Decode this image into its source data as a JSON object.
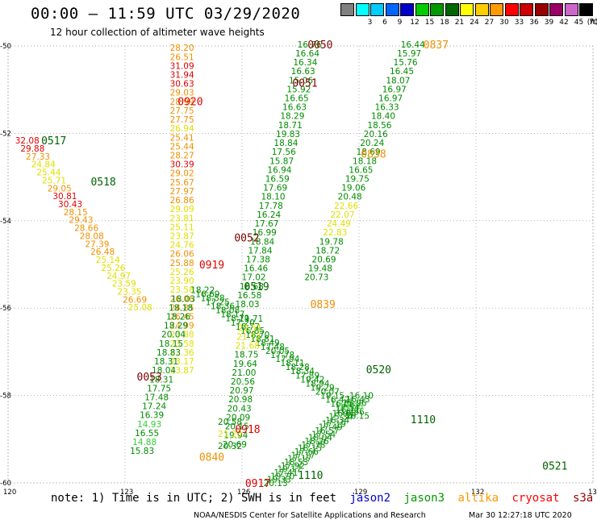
{
  "header": {
    "title": "00:00 – 11:59 UTC 03/29/2020",
    "subtitle": "12 hour collection of altimeter wave heights"
  },
  "scale": {
    "unit": "(ft)",
    "bins": [
      {
        "label": "",
        "color": "#808080"
      },
      {
        "label": "3",
        "color": "#00ffff"
      },
      {
        "label": "6",
        "color": "#00ccff"
      },
      {
        "label": "9",
        "color": "#0066ff"
      },
      {
        "label": "12",
        "color": "#0000cc"
      },
      {
        "label": "15",
        "color": "#00cc00"
      },
      {
        "label": "18",
        "color": "#009900"
      },
      {
        "label": "21",
        "color": "#006600"
      },
      {
        "label": "24",
        "color": "#ffff00"
      },
      {
        "label": "27",
        "color": "#ffcc00"
      },
      {
        "label": "30",
        "color": "#ff9900"
      },
      {
        "label": "33",
        "color": "#ff0000"
      },
      {
        "label": "36",
        "color": "#cc0000"
      },
      {
        "label": "39",
        "color": "#990000"
      },
      {
        "label": "42",
        "color": "#990066"
      },
      {
        "label": "45",
        "color": "#cc66cc"
      },
      {
        "label": "70",
        "color": "#000000"
      }
    ]
  },
  "map": {
    "lon_ticks": [
      "120",
      "123",
      "126",
      "129",
      "132",
      "135"
    ],
    "lat_ticks": [
      "-50",
      "-52",
      "-54",
      "-56",
      "-58",
      "-60"
    ],
    "lon_range": [
      120,
      135
    ],
    "lat_range": [
      -60,
      -50
    ]
  },
  "colors": {
    "green": "#008c00",
    "darkgreen": "#006400",
    "yellow": "#e0e000",
    "orange": "#f09000",
    "red": "#e00000",
    "darkred": "#800000",
    "lightgreen": "#33cc33"
  },
  "passes": [
    {
      "label": "0050",
      "lon": 127.68,
      "lat": -49.96,
      "color": "darkred"
    },
    {
      "label": "0837",
      "lon": 130.65,
      "lat": -49.96,
      "color": "orange"
    },
    {
      "label": "0051",
      "lon": 127.29,
      "lat": -50.84,
      "color": "darkred"
    },
    {
      "label": "0920",
      "lon": 124.35,
      "lat": -51.26,
      "color": "red"
    },
    {
      "label": "0517",
      "lon": 120.85,
      "lat": -52.16,
      "color": "darkgreen"
    },
    {
      "label": "0838",
      "lon": 129.05,
      "lat": -52.46,
      "color": "orange"
    },
    {
      "label": "0518",
      "lon": 122.12,
      "lat": -53.1,
      "color": "darkgreen"
    },
    {
      "label": "0052",
      "lon": 125.8,
      "lat": -54.38,
      "color": "darkred"
    },
    {
      "label": "0919",
      "lon": 124.9,
      "lat": -55.0,
      "color": "red"
    },
    {
      "label": "0519",
      "lon": 126.05,
      "lat": -55.5,
      "color": "darkgreen"
    },
    {
      "label": "0839",
      "lon": 127.75,
      "lat": -55.9,
      "color": "orange"
    },
    {
      "label": "0520",
      "lon": 129.18,
      "lat": -57.4,
      "color": "darkgreen"
    },
    {
      "label": "0053",
      "lon": 123.3,
      "lat": -57.56,
      "color": "darkred"
    },
    {
      "label": "0918",
      "lon": 125.82,
      "lat": -58.76,
      "color": "red"
    },
    {
      "label": "1110",
      "lon": 130.32,
      "lat": -58.54,
      "color": "darkgreen"
    },
    {
      "label": "0840",
      "lon": 124.9,
      "lat": -59.4,
      "color": "orange"
    },
    {
      "label": "0521",
      "lon": 133.7,
      "lat": -59.6,
      "color": "darkgreen"
    },
    {
      "label": "1110",
      "lon": 127.43,
      "lat": -59.82,
      "color": "darkgreen"
    },
    {
      "label": "0917",
      "lon": 126.08,
      "lat": -60.0,
      "color": "red"
    }
  ],
  "tracks": [
    {
      "name": "0920",
      "start": [
        124.15,
        -50.04
      ],
      "step": [
        0.0,
        -0.205
      ],
      "values": [
        "28.20",
        "26.51",
        "31.09",
        "31.94",
        "30.63",
        "29.03",
        "28.99",
        "27.75",
        "27.75",
        "26.94",
        "25.41",
        "25.44",
        "28.27",
        "30.39",
        "29.02",
        "25.67",
        "27.97",
        "26.86",
        "29.09",
        "23.81",
        "25.11",
        "23.87",
        "24.76",
        "26.06",
        "25.88",
        "25.26",
        "23.90",
        "23.58",
        "26.06",
        "24.85",
        "26.45",
        "24.99",
        "23.88",
        "23.58",
        "23.36",
        "23.17",
        "23.87"
      ],
      "colors": [
        "orange",
        "orange",
        "red",
        "red",
        "red",
        "orange",
        "orange",
        "orange",
        "orange",
        "yellow",
        "orange",
        "orange",
        "orange",
        "red",
        "orange",
        "orange",
        "orange",
        "orange",
        "yellow",
        "yellow",
        "yellow",
        "yellow",
        "yellow",
        "orange",
        "orange",
        "yellow",
        "yellow",
        "yellow",
        "orange",
        "orange",
        "orange",
        "orange",
        "yellow",
        "yellow",
        "yellow",
        "yellow",
        "yellow"
      ]
    },
    {
      "name": "0050",
      "start": [
        127.42,
        -49.96
      ],
      "step": [
        -0.055,
        -0.205
      ],
      "values": [
        "16.76",
        "16.64",
        "16.34",
        "16.63",
        "15.06",
        "15.92",
        "16.65",
        "16.63",
        "18.29",
        "18.71",
        "19.83",
        "18.84",
        "17.56",
        "15.87",
        "16.94",
        "16.59",
        "17.69",
        "18.10",
        "17.78",
        "16.24",
        "17.67",
        "16.99",
        "18.84",
        "17.84",
        "17.38",
        "16.46",
        "17.02",
        "16.68",
        "16.58",
        "18.03"
      ],
      "colors": [
        "green",
        "green",
        "green",
        "green",
        "green",
        "green",
        "green",
        "green",
        "green",
        "green",
        "green",
        "green",
        "green",
        "green",
        "green",
        "green",
        "green",
        "green",
        "green",
        "green",
        "green",
        "green",
        "green",
        "green",
        "green",
        "green",
        "green",
        "green",
        "green",
        "green"
      ]
    },
    {
      "name": "0837",
      "start": [
        130.07,
        -49.96
      ],
      "step": [
        -0.095,
        -0.205
      ],
      "values": [
        "16.44",
        "15.97",
        "15.76",
        "16.45",
        "18.07",
        "16.97",
        "16.97",
        "16.33",
        "18.40",
        "18.56",
        "20.16",
        "20.24",
        "18.69",
        "18.18",
        "16.65",
        "19.75",
        "19.06",
        "20.48",
        "22.66",
        "22.07",
        "24.49",
        "22.83",
        "19.78",
        "18.72",
        "20.69",
        "19.48",
        "20.73"
      ],
      "colors": [
        "green",
        "green",
        "green",
        "green",
        "green",
        "green",
        "green",
        "green",
        "green",
        "green",
        "green",
        "green",
        "green",
        "green",
        "green",
        "green",
        "green",
        "green",
        "yellow",
        "yellow",
        "yellow",
        "yellow",
        "green",
        "green",
        "green",
        "green",
        "green"
      ]
    },
    {
      "name": "0517",
      "start": [
        120.18,
        -52.16
      ],
      "step": [
        0.138,
        -0.182
      ],
      "values": [
        "32.08",
        "29.88",
        "27.33",
        "24.84",
        "25.44",
        "25.71",
        "29.05",
        "30.81",
        "30.43",
        "28.15",
        "29.43",
        "28.66",
        "28.08",
        "27.39",
        "26.48",
        "25.14",
        "25.26",
        "24.97",
        "23.59",
        "23.35",
        "26.69",
        "25.08"
      ],
      "colors": [
        "red",
        "red",
        "orange",
        "yellow",
        "yellow",
        "yellow",
        "orange",
        "red",
        "red",
        "orange",
        "orange",
        "orange",
        "orange",
        "orange",
        "orange",
        "yellow",
        "yellow",
        "yellow",
        "yellow",
        "yellow",
        "orange",
        "yellow"
      ]
    },
    {
      "name": "0519",
      "start": [
        124.68,
        -55.58
      ],
      "step": [
        0.128,
        -0.093
      ],
      "values": [
        "18.22",
        "16.69",
        "18.58",
        "17.25",
        "18.36",
        "18.08",
        "18.17",
        "18.71",
        "17.20",
        "16.77",
        "16.85",
        "18.70",
        "18.81",
        "18.49",
        "17.48",
        "20.05",
        "17.78",
        "17.94",
        "18.11",
        "18.28",
        "18.34",
        "17.89",
        "19.42",
        "18.94",
        "19.29",
        "20.07",
        "19.15",
        "16.42",
        "16.06",
        "17.54",
        "16.56",
        "16.15"
      ],
      "colors": [
        "green",
        "green",
        "green",
        "green",
        "green",
        "green",
        "green",
        "green",
        "green",
        "green",
        "green",
        "green",
        "green",
        "green",
        "green",
        "green",
        "green",
        "green",
        "green",
        "green",
        "green",
        "green",
        "green",
        "green",
        "green",
        "green",
        "green",
        "green",
        "green",
        "green",
        "green",
        "green"
      ]
    },
    {
      "name": "1110",
      "start": [
        126.55,
        -60.0
      ],
      "step": [
        0.088,
        0.08
      ],
      "values": [
        "20.13",
        "19.33",
        "19.20",
        "17.41",
        "19.17",
        "17.92",
        "18.53",
        "17.17",
        "17.17",
        "17.66",
        "18.15",
        "17.78",
        "18.26",
        "18.04",
        "17.54",
        "16.57",
        "17.49",
        "17.19",
        "16.34",
        "15.34",
        "16.68",
        "16.11",
        "14.86",
        "15.96",
        "16.43",
        "16.10"
      ],
      "colors": [
        "green",
        "green",
        "green",
        "green",
        "green",
        "green",
        "green",
        "green",
        "green",
        "green",
        "green",
        "green",
        "green",
        "green",
        "green",
        "green",
        "green",
        "green",
        "green",
        "green",
        "green",
        "green",
        "lightgreen",
        "green",
        "green",
        "green"
      ]
    },
    {
      "name": "0053",
      "start": [
        124.18,
        -55.78
      ],
      "step": [
        -0.062,
        -0.205
      ],
      "values": [
        "18.03",
        "18.18",
        "18.26",
        "18.29",
        "20.04",
        "18.15",
        "18.83",
        "18.31",
        "18.04",
        "18.31",
        "17.75",
        "17.48",
        "17.24",
        "16.39",
        "14.93",
        "16.55",
        "14.88",
        "15.83"
      ],
      "colors": [
        "green",
        "green",
        "green",
        "green",
        "green",
        "green",
        "green",
        "green",
        "green",
        "green",
        "green",
        "green",
        "green",
        "green",
        "lightgreen",
        "green",
        "lightgreen",
        "green"
      ]
    },
    {
      "name": "0918",
      "start": [
        125.92,
        -56.24
      ],
      "step": [
        -0.03,
        -0.205
      ],
      "values": [
        "19.71",
        "22.51",
        "21.72",
        "21.68",
        "18.75",
        "19.64",
        "21.00",
        "20.56",
        "20.97",
        "20.98",
        "20.43",
        "20.09",
        "20.15",
        "19.94",
        "20.69"
      ],
      "colors": [
        "green",
        "yellow",
        "yellow",
        "yellow",
        "green",
        "green",
        "green",
        "green",
        "green",
        "green",
        "green",
        "green",
        "green",
        "green",
        "green"
      ]
    },
    {
      "name": "0917",
      "start": [
        125.38,
        -58.6
      ],
      "step": [
        0.0,
        -0.275
      ],
      "values": [
        "20.58",
        "21.20",
        "20.32"
      ],
      "colors": [
        "green",
        "yellow",
        "green"
      ]
    }
  ],
  "legend": {
    "note": "note: 1) Time is in UTC; 2) SWH is in feet",
    "satellites": [
      {
        "name": "jason2",
        "color": "#0000cc"
      },
      {
        "name": "jason3",
        "color": "#009900"
      },
      {
        "name": "altika",
        "color": "#ff9900"
      },
      {
        "name": "cryosat",
        "color": "#ff0000"
      },
      {
        "name": "s3a",
        "color": "#990000"
      }
    ]
  },
  "footer": {
    "credit": "NOAA/NESDIS Center for Satellite Applications and Research",
    "timestamp": "Mar 30 12:27:18 UTC 2020"
  }
}
